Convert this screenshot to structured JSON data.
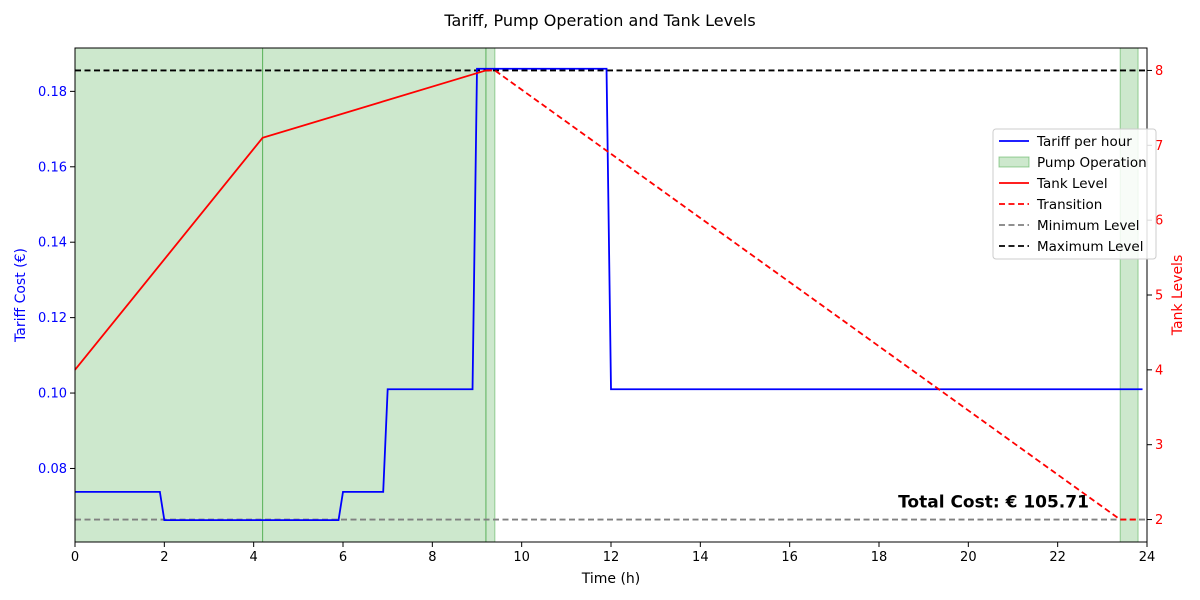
{
  "chart_data": {
    "type": "line",
    "title": "Tariff, Pump Operation and Tank Levels",
    "xlabel": "Time (h)",
    "ylabel_left": "Tariff Cost (€)",
    "ylabel_right": "Tank Levels",
    "xlim": [
      0,
      24
    ],
    "ylim_left": [
      0.0605,
      0.1915
    ],
    "ylim_right": [
      1.7,
      8.3
    ],
    "x_ticks": [
      0,
      2,
      4,
      6,
      8,
      10,
      12,
      14,
      16,
      18,
      20,
      22,
      24
    ],
    "y_ticks_left": [
      0.08,
      0.1,
      0.12,
      0.14,
      0.16,
      0.18
    ],
    "y_tick_labels_left": [
      "0.08",
      "0.10",
      "0.12",
      "0.14",
      "0.16",
      "0.18"
    ],
    "y_ticks_right": [
      2,
      3,
      4,
      5,
      6,
      7,
      8
    ],
    "y_tick_labels_right": [
      "2",
      "3",
      "4",
      "5",
      "6",
      "7",
      "8"
    ],
    "grid": false,
    "legend_position": "right",
    "colors": {
      "tariff": "#0000ff",
      "pump": "#2e9e2e",
      "tank": "#ff0000",
      "min_level": "#808080",
      "max_level": "#000000",
      "left_axis": "#0000ff",
      "right_axis": "#ff0000"
    },
    "series": [
      {
        "name": "Tariff per hour",
        "axis": "left",
        "x": [
          0,
          1.9,
          2.0,
          5.9,
          6.0,
          6.9,
          7.0,
          8.9,
          9.0,
          11.9,
          12.0,
          23.9
        ],
        "y": [
          0.0738,
          0.0738,
          0.0663,
          0.0663,
          0.0738,
          0.0738,
          0.101,
          0.101,
          0.186,
          0.186,
          0.101,
          0.101
        ]
      },
      {
        "name": "Pump Operation",
        "axis": "band",
        "intervals": [
          [
            0,
            4.2
          ],
          [
            4.2,
            9.2
          ],
          [
            9.2,
            9.4
          ],
          [
            23.4,
            23.8
          ]
        ]
      },
      {
        "name": "Tank Level",
        "axis": "right",
        "x": [
          0,
          4.2,
          9.2
        ],
        "y": [
          4.0,
          7.1,
          8.0
        ]
      },
      {
        "name": "Transition",
        "axis": "right",
        "x": [
          9.2,
          9.4,
          23.4,
          23.8
        ],
        "y": [
          8.0,
          8.0,
          2.0,
          2.0
        ]
      },
      {
        "name": "Minimum Level",
        "axis": "right",
        "x": [
          0,
          24
        ],
        "y": [
          2,
          2
        ]
      },
      {
        "name": "Maximum Level",
        "axis": "right",
        "x": [
          0,
          24
        ],
        "y": [
          8,
          8
        ]
      }
    ],
    "annotations": [
      {
        "text": "Total Cost: € 105.71",
        "x": 22.7,
        "y_right": 2.16,
        "anchor": "end"
      }
    ]
  }
}
